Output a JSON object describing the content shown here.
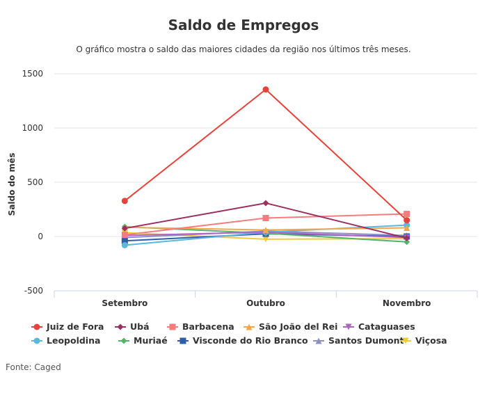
{
  "chart_data": {
    "type": "line",
    "title": "Saldo de Empregos",
    "subtitle": "O gráfico mostra o saldo das maiores cidades da região nos últimos três meses.",
    "ylabel": "Saldo do mês",
    "xlabel": "",
    "categories": [
      "Setembro",
      "Outubro",
      "Novembro"
    ],
    "ylim": [
      -500,
      1500
    ],
    "yticks": [
      1500,
      1000,
      500,
      0,
      -500
    ],
    "grid": true,
    "legend_position": "bottom",
    "series": [
      {
        "name": "Juiz de Fora",
        "color": "#e8433a",
        "marker": "circle",
        "values": [
          328,
          1355,
          150
        ]
      },
      {
        "name": "Ubá",
        "color": "#9b2f62",
        "marker": "diamond",
        "values": [
          75,
          308,
          -15
        ]
      },
      {
        "name": "Barbacena",
        "color": "#f47c7c",
        "marker": "square",
        "values": [
          15,
          170,
          208
        ]
      },
      {
        "name": "São João del Rei",
        "color": "#f5a74a",
        "marker": "triangle",
        "values": [
          85,
          60,
          80
        ]
      },
      {
        "name": "Cataguases",
        "color": "#b064c6",
        "marker": "triangle-down",
        "values": [
          10,
          40,
          -10
        ]
      },
      {
        "name": "Leopoldina",
        "color": "#5ab7e0",
        "marker": "circle",
        "values": [
          -80,
          40,
          105
        ]
      },
      {
        "name": "Muriaé",
        "color": "#57b36b",
        "marker": "diamond",
        "values": [
          90,
          30,
          -50
        ]
      },
      {
        "name": "Visconde do Rio Branco",
        "color": "#2f5ea8",
        "marker": "square",
        "values": [
          -40,
          25,
          0
        ]
      },
      {
        "name": "Santos Dumont",
        "color": "#8f8fc4",
        "marker": "triangle",
        "values": [
          -10,
          50,
          10
        ]
      },
      {
        "name": "Viçosa",
        "color": "#f5c83c",
        "marker": "triangle-down",
        "values": [
          35,
          -25,
          -20
        ]
      }
    ]
  },
  "source": "Fonte: Caged"
}
